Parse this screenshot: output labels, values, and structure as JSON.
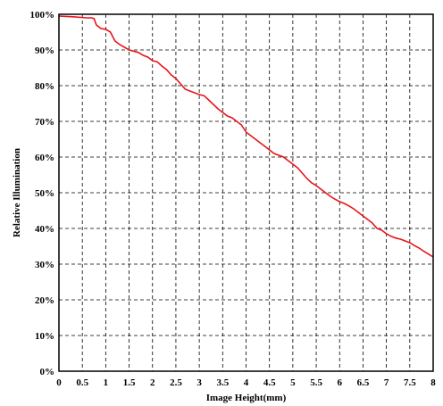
{
  "chart_data": {
    "type": "line",
    "title": "",
    "xlabel": "Image Height(mm)",
    "ylabel": "Relative Illumination",
    "xlim": [
      0,
      8
    ],
    "ylim": [
      0,
      100
    ],
    "grid": true,
    "x_ticks": [
      "0",
      "0.5",
      "1",
      "1.5",
      "2",
      "2.5",
      "3",
      "3.5",
      "4",
      "4.5",
      "5",
      "5.5",
      "6",
      "6.5",
      "7",
      "7.5",
      "8"
    ],
    "y_ticks": [
      "0%",
      "10%",
      "20%",
      "30%",
      "40%",
      "50%",
      "60%",
      "70%",
      "80%",
      "90%",
      "100%"
    ],
    "series": [
      {
        "color": "#e8141a",
        "x": [
          0,
          0.3,
          0.6,
          0.7,
          0.75,
          0.8,
          0.9,
          1.0,
          1.1,
          1.2,
          1.3,
          1.5,
          1.7,
          1.8,
          1.9,
          2.0,
          2.1,
          2.2,
          2.3,
          2.4,
          2.5,
          2.6,
          2.7,
          2.8,
          2.9,
          3.0,
          3.1,
          3.2,
          3.4,
          3.5,
          3.6,
          3.7,
          3.8,
          3.9,
          4.0,
          4.1,
          4.2,
          4.3,
          4.4,
          4.5,
          4.6,
          4.7,
          4.8,
          4.9,
          5.0,
          5.1,
          5.2,
          5.3,
          5.4,
          5.5,
          5.6,
          5.7,
          5.8,
          5.9,
          6.0,
          6.1,
          6.2,
          6.3,
          6.4,
          6.5,
          6.6,
          6.7,
          6.8,
          6.9,
          7.0,
          7.1,
          7.2,
          7.3,
          7.4,
          7.5,
          7.6,
          7.7,
          7.8,
          7.9,
          8.0
        ],
        "y": [
          99.5,
          99.3,
          99.0,
          99.0,
          98.8,
          97.0,
          96.0,
          95.8,
          95.0,
          92.5,
          91.5,
          90.0,
          89.3,
          88.5,
          88.0,
          87.0,
          86.7,
          85.5,
          84.5,
          83.0,
          82.0,
          80.5,
          79.0,
          78.5,
          78.0,
          77.5,
          77.2,
          76.0,
          73.5,
          72.5,
          71.5,
          71.0,
          70.0,
          69.0,
          67.0,
          66.0,
          65.0,
          64.0,
          63.0,
          62.0,
          61.0,
          60.5,
          60.0,
          59.0,
          58.0,
          57.0,
          55.5,
          54.0,
          52.8,
          52.0,
          51.0,
          50.0,
          49.0,
          48.2,
          47.5,
          47.0,
          46.3,
          45.5,
          44.5,
          43.5,
          42.5,
          41.5,
          40.0,
          39.5,
          38.5,
          37.8,
          37.3,
          37.0,
          36.5,
          36.0,
          35.2,
          34.5,
          33.6,
          32.8,
          32.0
        ]
      }
    ]
  }
}
